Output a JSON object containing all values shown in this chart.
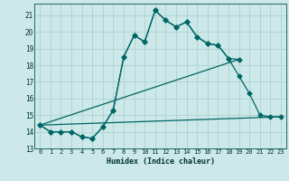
{
  "title": "",
  "xlabel": "Humidex (Indice chaleur)",
  "bg_color": "#cce8e8",
  "grid_color": "#aacccc",
  "line_color": "#006666",
  "xlim": [
    -0.5,
    23.5
  ],
  "ylim": [
    13,
    21.7
  ],
  "xticks": [
    0,
    1,
    2,
    3,
    4,
    5,
    6,
    7,
    8,
    9,
    10,
    11,
    12,
    13,
    14,
    15,
    16,
    17,
    18,
    19,
    20,
    21,
    22,
    23
  ],
  "yticks": [
    13,
    14,
    15,
    16,
    17,
    18,
    19,
    20,
    21
  ],
  "line1_x": [
    0,
    1,
    2,
    3,
    4,
    5,
    6,
    7,
    8,
    9,
    10,
    11,
    12,
    13,
    14,
    15,
    16,
    17,
    18,
    19
  ],
  "line1_y": [
    14.4,
    14.0,
    14.0,
    14.0,
    13.7,
    13.6,
    14.3,
    15.3,
    18.5,
    19.8,
    19.4,
    21.3,
    20.7,
    20.3,
    20.6,
    19.7,
    19.3,
    19.2,
    18.4,
    18.35
  ],
  "line2_x": [
    0,
    1,
    2,
    3,
    4,
    5,
    6,
    7,
    8,
    9,
    10,
    11,
    12,
    13,
    14,
    15,
    16,
    17,
    18,
    19,
    20,
    21,
    22,
    23
  ],
  "line2_y": [
    14.4,
    14.0,
    14.0,
    14.0,
    13.7,
    13.6,
    14.3,
    15.3,
    18.5,
    19.8,
    19.4,
    21.3,
    20.7,
    20.3,
    20.6,
    19.7,
    19.3,
    19.2,
    18.4,
    17.35,
    16.3,
    15.0,
    14.9,
    14.9
  ],
  "line3_x": [
    0,
    19
  ],
  "line3_y": [
    14.4,
    18.35
  ],
  "line4_x": [
    0,
    23
  ],
  "line4_y": [
    14.4,
    14.9
  ]
}
